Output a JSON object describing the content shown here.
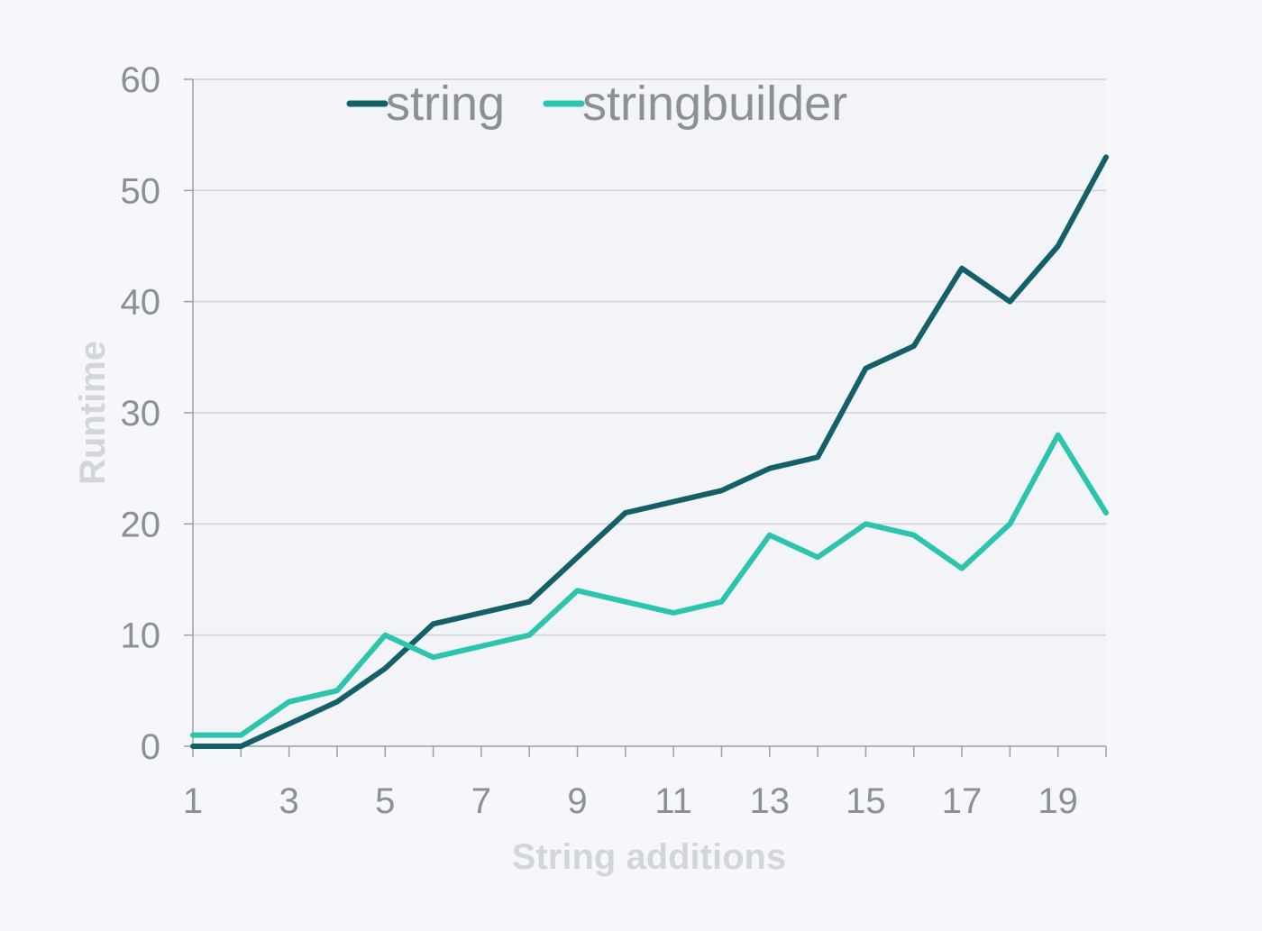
{
  "chart_data": {
    "type": "line",
    "title": "",
    "xlabel": "String additions",
    "ylabel": "Runtime",
    "x": [
      1,
      2,
      3,
      4,
      5,
      6,
      7,
      8,
      9,
      10,
      11,
      12,
      13,
      14,
      15,
      16,
      17,
      18,
      19,
      20
    ],
    "x_tick_labels": [
      "1",
      "3",
      "5",
      "7",
      "9",
      "11",
      "13",
      "15",
      "17",
      "19"
    ],
    "ylim": [
      0,
      60
    ],
    "y_tick_labels": [
      "0",
      "10",
      "20",
      "30",
      "40",
      "50",
      "60"
    ],
    "grid": "horizontal",
    "legend_position": "top",
    "series": [
      {
        "name": "string",
        "color": "#155f69",
        "values": [
          0,
          0,
          2,
          4,
          7,
          11,
          12,
          13,
          17,
          21,
          22,
          23,
          25,
          26,
          34,
          36,
          43,
          40,
          45,
          53
        ]
      },
      {
        "name": "stringbuilder",
        "color": "#2cc4ad",
        "values": [
          1,
          1,
          4,
          5,
          10,
          8,
          9,
          10,
          14,
          13,
          12,
          13,
          19,
          17,
          20,
          19,
          16,
          20,
          28,
          21
        ]
      }
    ]
  }
}
